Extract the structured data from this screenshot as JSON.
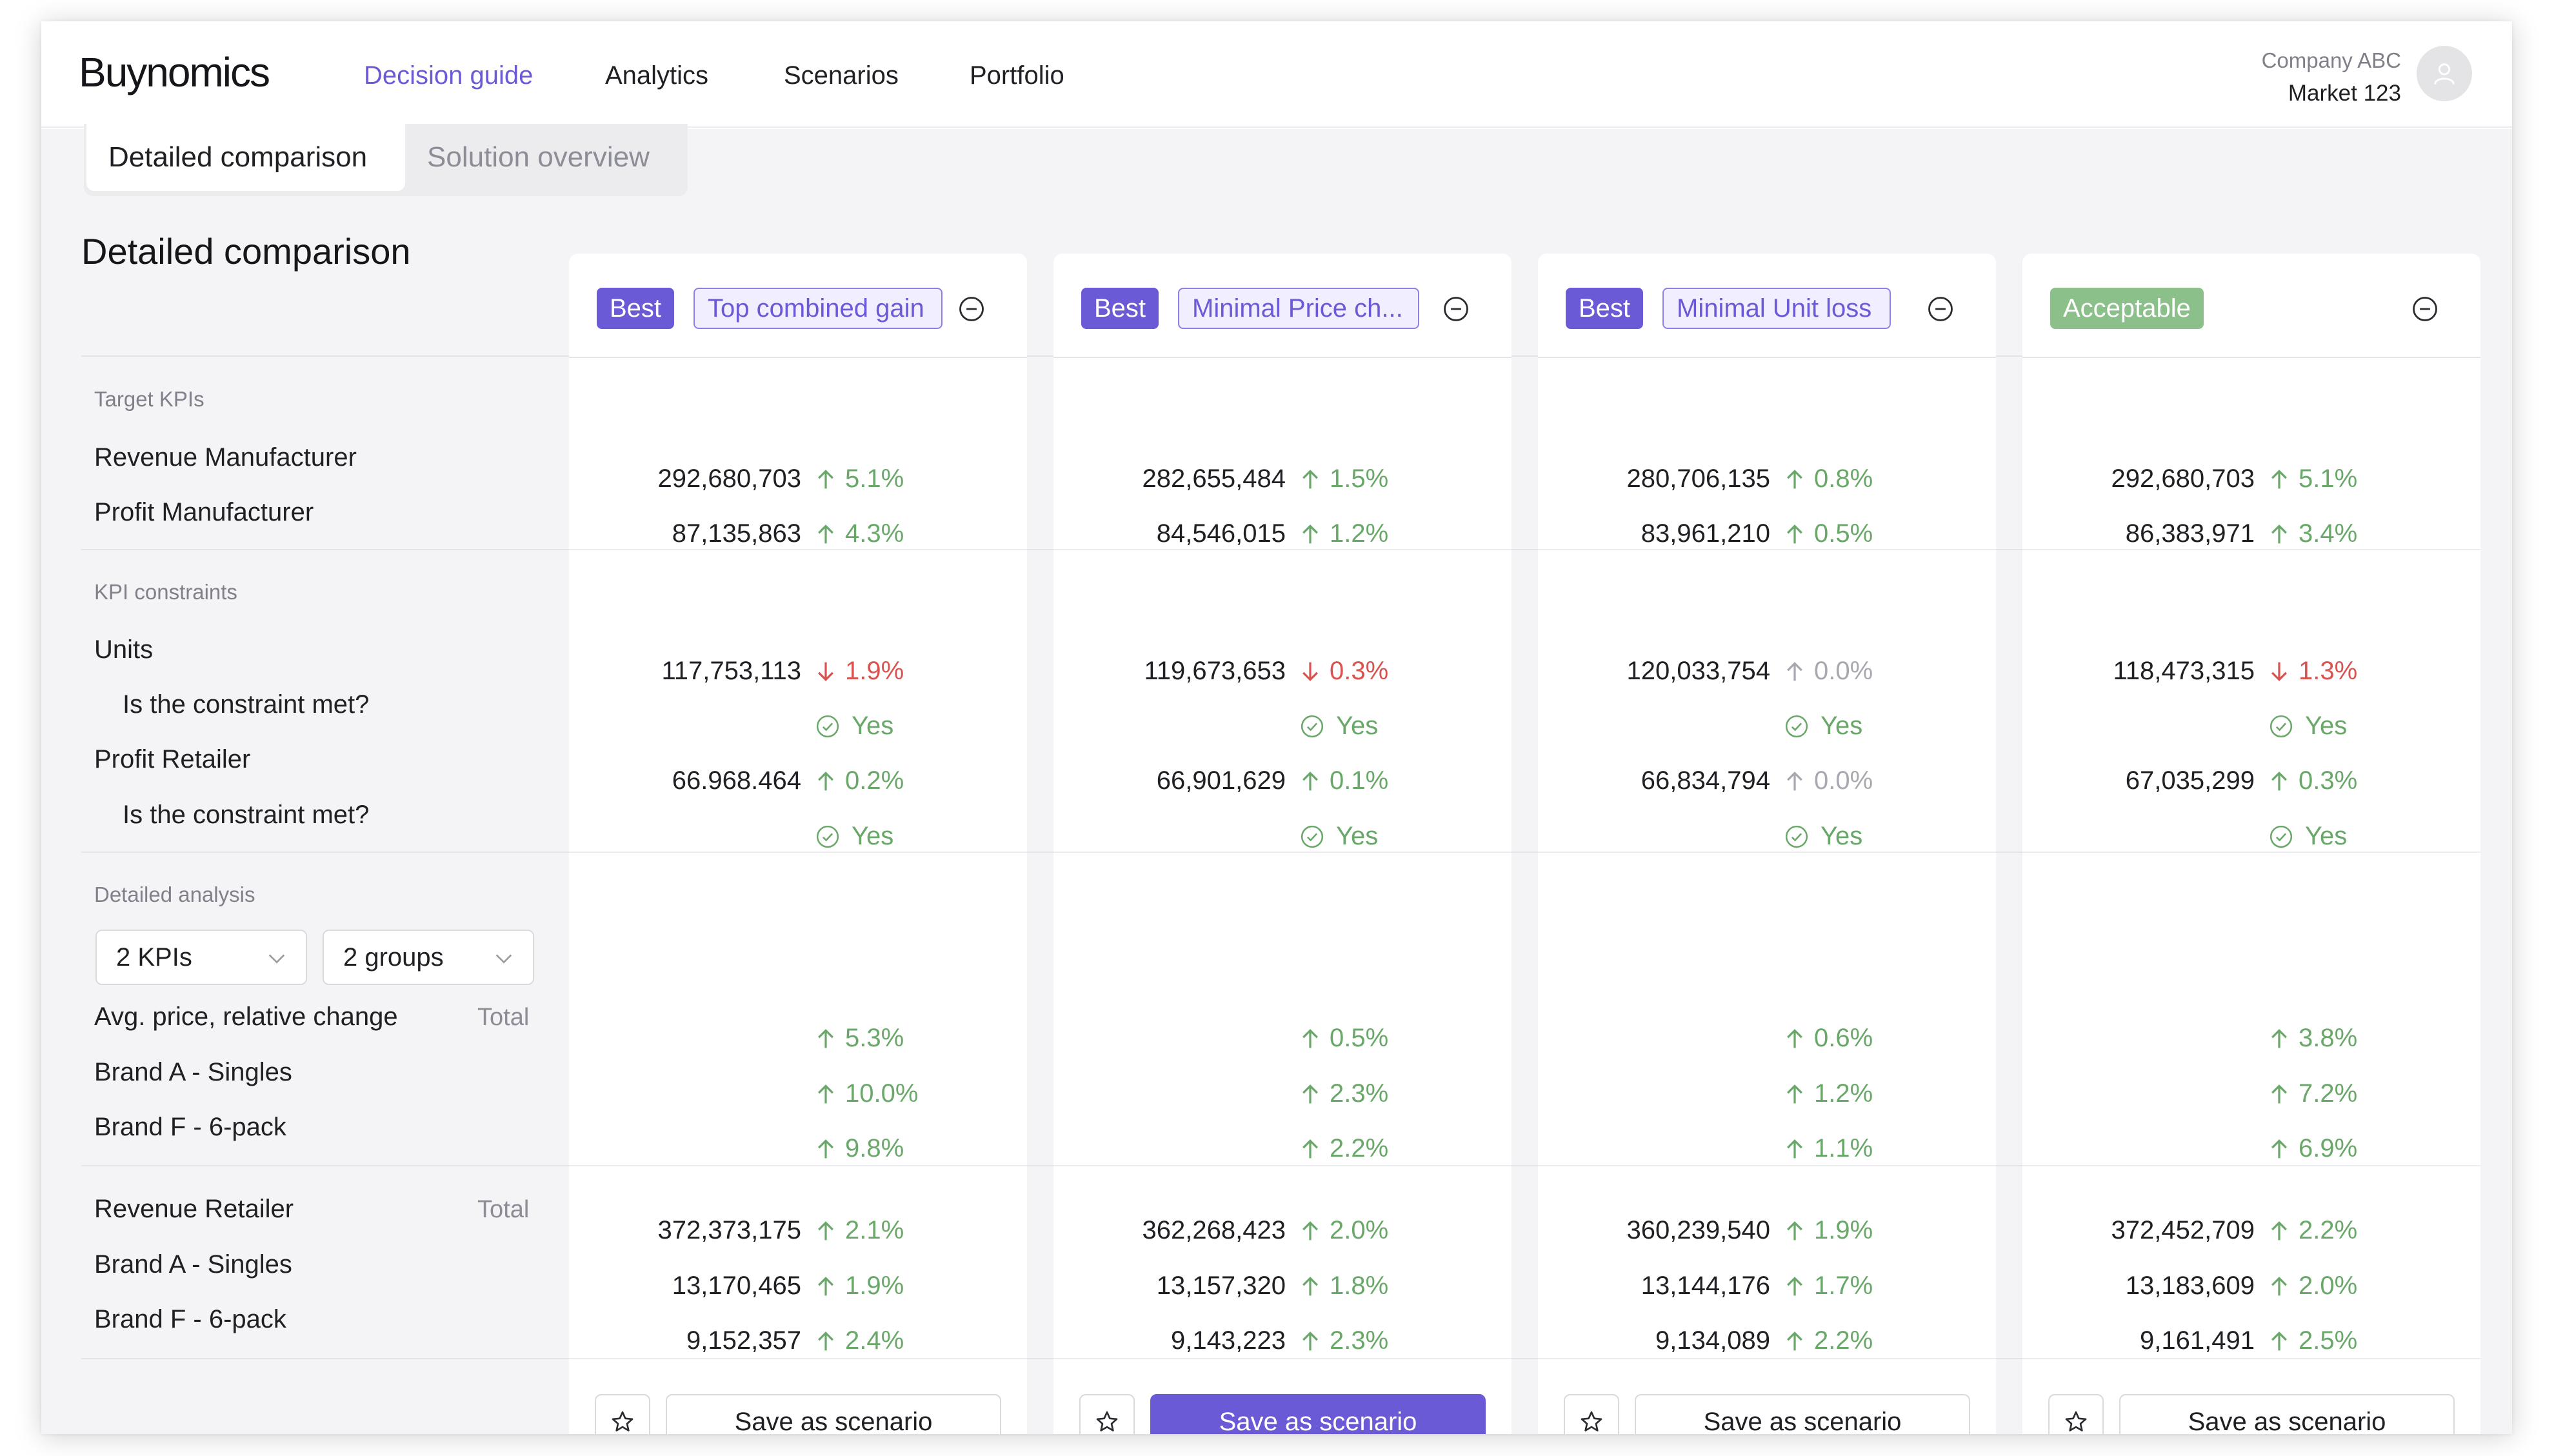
{
  "app": {
    "logo": "Buynomics",
    "nav": [
      "Decision guide",
      "Analytics",
      "Scenarios",
      "Portfolio"
    ],
    "active_nav": "Decision guide",
    "company": "Company ABC",
    "market": "Market 123"
  },
  "tabs": [
    "Detailed comparison",
    "Solution overview"
  ],
  "active_tab": "Detailed comparison",
  "section_title": "Detailed comparison",
  "groups": {
    "target": "Target KPIs",
    "constraints": "KPI constraints",
    "analysis": "Detailed analysis"
  },
  "rows": {
    "revenue_manufacturer": "Revenue Manufacturer",
    "profit_manufacturer": "Profit Manufacturer",
    "units": "Units",
    "constraint_q": "Is the constraint met?",
    "profit_retailer": "Profit Retailer",
    "avg_price": "Avg. price, relative change",
    "brand_a": "Brand A - Singles",
    "brand_f": "Brand F -  6-pack",
    "revenue_retailer": "Revenue Retailer",
    "total": "Total"
  },
  "filters": {
    "kpis": "2 KPIs",
    "groups": "2 groups"
  },
  "colors": {
    "accent": "#6b5ad6",
    "positive": "#6aa86a",
    "negative": "#d9534f",
    "neutral": "#a8a8b0",
    "acceptable": "#8cc08a"
  },
  "solutions": [
    {
      "badge": "Best",
      "tag": "Top combined gain",
      "badge_type": "best",
      "rev_mfr": "292,680,703",
      "rev_mfr_chg": "5.1%",
      "rev_mfr_dir": "up",
      "profit_mfr": "87,135,863",
      "profit_mfr_chg": "4.3%",
      "profit_mfr_dir": "up",
      "units": "117,753,113",
      "units_chg": "1.9%",
      "units_dir": "down",
      "units_met": "Yes",
      "profit_ret": "66.968.464",
      "profit_ret_chg": "0.2%",
      "profit_ret_dir": "up",
      "profit_ret_met": "Yes",
      "avg_total": "5.3%",
      "avg_a": "10.0%",
      "avg_f": "9.8%",
      "rev_ret": "372,373,175",
      "rev_ret_chg": "2.1%",
      "rev_ret_a": "13,170,465",
      "rev_ret_a_chg": "1.9%",
      "rev_ret_f": "9,152,357",
      "rev_ret_f_chg": "2.4%",
      "save": "Save as scenario",
      "primary": false
    },
    {
      "badge": "Best",
      "tag": "Minimal Price ch...",
      "badge_type": "best",
      "rev_mfr": "282,655,484",
      "rev_mfr_chg": "1.5%",
      "rev_mfr_dir": "up",
      "profit_mfr": "84,546,015",
      "profit_mfr_chg": "1.2%",
      "profit_mfr_dir": "up",
      "units": "119,673,653",
      "units_chg": "0.3%",
      "units_dir": "down",
      "units_met": "Yes",
      "profit_ret": "66,901,629",
      "profit_ret_chg": "0.1%",
      "profit_ret_dir": "up",
      "profit_ret_met": "Yes",
      "avg_total": "0.5%",
      "avg_a": "2.3%",
      "avg_f": "2.2%",
      "rev_ret": "362,268,423",
      "rev_ret_chg": "2.0%",
      "rev_ret_a": "13,157,320",
      "rev_ret_a_chg": "1.8%",
      "rev_ret_f": "9,143,223",
      "rev_ret_f_chg": "2.3%",
      "save": "Save as scenario",
      "primary": true
    },
    {
      "badge": "Best",
      "tag": "Minimal Unit loss",
      "badge_type": "best",
      "rev_mfr": "280,706,135",
      "rev_mfr_chg": "0.8%",
      "rev_mfr_dir": "up",
      "profit_mfr": "83,961,210",
      "profit_mfr_chg": "0.5%",
      "profit_mfr_dir": "up",
      "units": "120,033,754",
      "units_chg": "0.0%",
      "units_dir": "neutral",
      "units_met": "Yes",
      "profit_ret": "66,834,794",
      "profit_ret_chg": "0.0%",
      "profit_ret_dir": "neutral",
      "profit_ret_met": "Yes",
      "avg_total": "0.6%",
      "avg_a": "1.2%",
      "avg_f": "1.1%",
      "rev_ret": "360,239,540",
      "rev_ret_chg": "1.9%",
      "rev_ret_a": "13,144,176",
      "rev_ret_a_chg": "1.7%",
      "rev_ret_f": "9,134,089",
      "rev_ret_f_chg": "2.2%",
      "save": "Save as scenario",
      "primary": false
    },
    {
      "badge": "Acceptable",
      "tag": "",
      "badge_type": "ok",
      "rev_mfr": "292,680,703",
      "rev_mfr_chg": "5.1%",
      "rev_mfr_dir": "up",
      "profit_mfr": "86,383,971",
      "profit_mfr_chg": "3.4%",
      "profit_mfr_dir": "up",
      "units": "118,473,315",
      "units_chg": "1.3%",
      "units_dir": "down",
      "units_met": "Yes",
      "profit_ret": "67,035,299",
      "profit_ret_chg": "0.3%",
      "profit_ret_dir": "up",
      "profit_ret_met": "Yes",
      "avg_total": "3.8%",
      "avg_a": "7.2%",
      "avg_f": "6.9%",
      "rev_ret": "372,452,709",
      "rev_ret_chg": "2.2%",
      "rev_ret_a": "13,183,609",
      "rev_ret_a_chg": "2.0%",
      "rev_ret_f": "9,161,491",
      "rev_ret_f_chg": "2.5%",
      "save": "Save as scenario",
      "primary": false
    }
  ]
}
